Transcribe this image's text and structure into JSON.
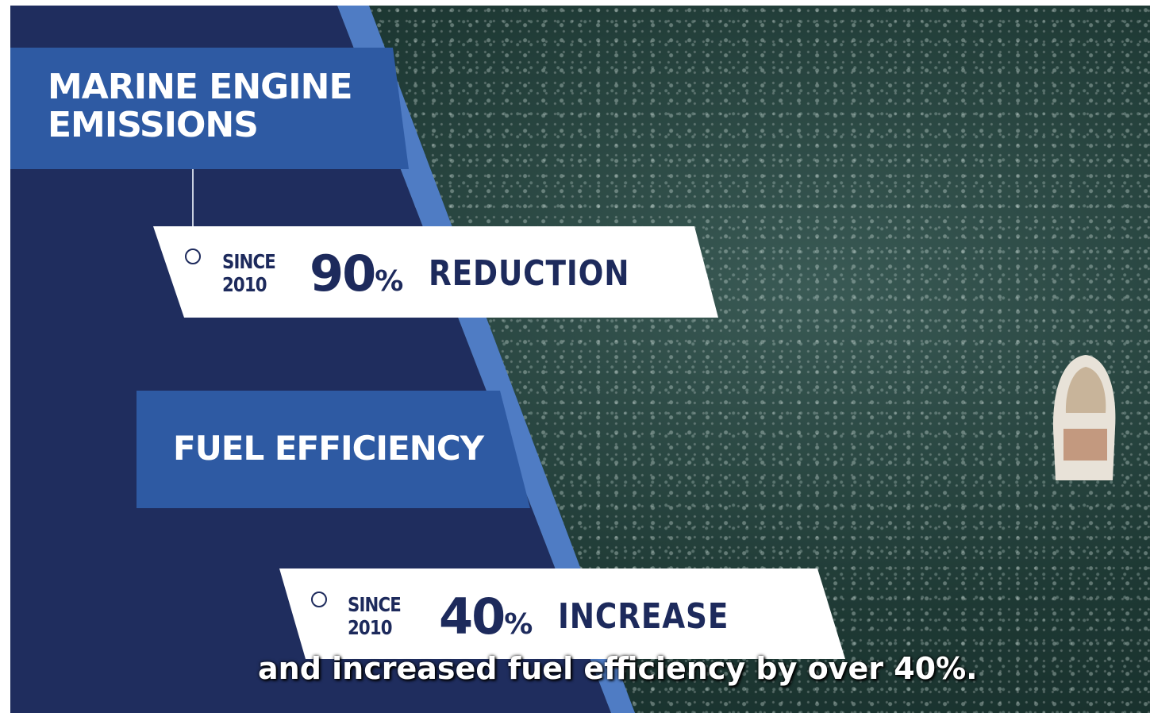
{
  "header": {
    "title_lines": [
      "MARINE ENGINE",
      "EMISSIONS"
    ]
  },
  "stats": [
    {
      "since_lines": [
        "SINCE",
        "2010"
      ],
      "number": "90",
      "unit": "%",
      "label": "REDUCTION"
    },
    {
      "heading": "FUEL EFFICIENCY",
      "since_lines": [
        "SINCE",
        "2010"
      ],
      "number": "40",
      "unit": "%",
      "label": "INCREASE"
    }
  ],
  "caption": "and increased fuel efficiency by over 40%."
}
